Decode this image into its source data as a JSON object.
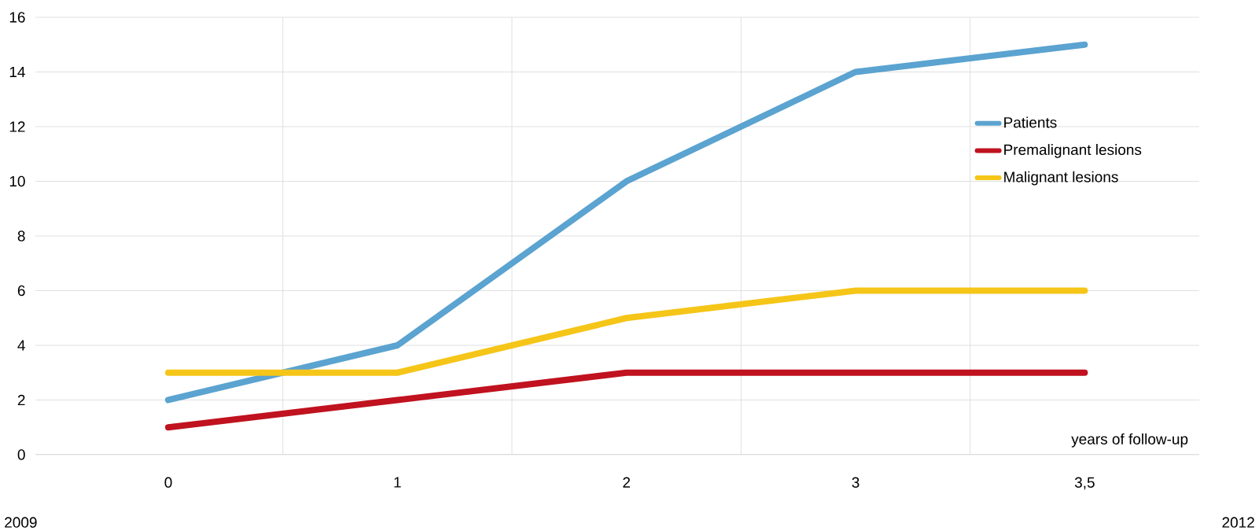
{
  "chart_data": {
    "type": "line",
    "categories": [
      "0",
      "1",
      "2",
      "3",
      "3,5"
    ],
    "xlabel": "years of follow-up",
    "ylim": [
      0,
      16
    ],
    "yticks": [
      0,
      2,
      4,
      6,
      8,
      10,
      12,
      14,
      16
    ],
    "grid": true,
    "legend": "right",
    "marker": "none",
    "line_style": "solid",
    "series": [
      {
        "name": "Patients",
        "color": "#5ba3d0",
        "values": [
          2,
          4,
          10,
          14,
          15
        ]
      },
      {
        "name": "Premalignant lesions",
        "color": "#c0121f",
        "values": [
          1,
          2,
          3,
          3,
          3
        ]
      },
      {
        "name": "Malignant lesions",
        "color": "#f5c518",
        "values": [
          3,
          3,
          5,
          6,
          6
        ]
      }
    ],
    "annotations": [
      "2009",
      "2012"
    ]
  }
}
